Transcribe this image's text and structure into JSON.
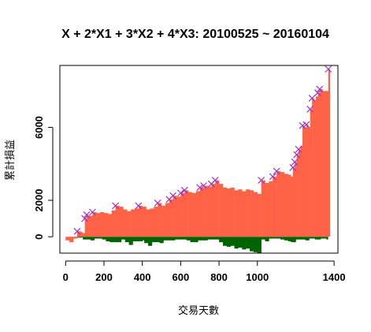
{
  "chart_data": {
    "type": "bar",
    "title": "X + 2*X1 + 3*X2 + 4*X3: 20100525 ~ 20160104",
    "xlabel": "交易天數",
    "ylabel": "累計損益",
    "xlim": [
      -30,
      1420
    ],
    "ylim": [
      -900,
      9400
    ],
    "xticks": [
      0,
      200,
      400,
      600,
      800,
      1000,
      1400
    ],
    "yticks": [
      0,
      2000,
      6000
    ],
    "colors": {
      "profit": "#ff6347",
      "drawdown": "#006400",
      "marker": "#9932cc"
    },
    "cumulative_pnl": [
      [
        0,
        -200
      ],
      [
        20,
        -300
      ],
      [
        40,
        -100
      ],
      [
        60,
        300
      ],
      [
        80,
        250
      ],
      [
        90,
        200
      ],
      [
        100,
        1000
      ],
      [
        110,
        1200
      ],
      [
        120,
        1150
      ],
      [
        140,
        1350
      ],
      [
        160,
        1300
      ],
      [
        180,
        1350
      ],
      [
        200,
        1300
      ],
      [
        220,
        1250
      ],
      [
        240,
        1450
      ],
      [
        260,
        1700
      ],
      [
        280,
        1650
      ],
      [
        300,
        1500
      ],
      [
        320,
        1400
      ],
      [
        340,
        1500
      ],
      [
        360,
        1550
      ],
      [
        380,
        1700
      ],
      [
        400,
        1650
      ],
      [
        420,
        1500
      ],
      [
        440,
        1550
      ],
      [
        460,
        1650
      ],
      [
        480,
        1850
      ],
      [
        500,
        1700
      ],
      [
        520,
        1850
      ],
      [
        540,
        2050
      ],
      [
        560,
        2250
      ],
      [
        580,
        2200
      ],
      [
        600,
        2400
      ],
      [
        620,
        2550
      ],
      [
        640,
        2450
      ],
      [
        660,
        2400
      ],
      [
        680,
        2500
      ],
      [
        700,
        2700
      ],
      [
        720,
        2800
      ],
      [
        740,
        2750
      ],
      [
        760,
        2900
      ],
      [
        780,
        3100
      ],
      [
        800,
        2900
      ],
      [
        820,
        2700
      ],
      [
        840,
        2650
      ],
      [
        860,
        2700
      ],
      [
        880,
        2550
      ],
      [
        900,
        2600
      ],
      [
        920,
        2500
      ],
      [
        940,
        2600
      ],
      [
        960,
        2550
      ],
      [
        980,
        2450
      ],
      [
        1000,
        2350
      ],
      [
        1020,
        3100
      ],
      [
        1040,
        2950
      ],
      [
        1060,
        3050
      ],
      [
        1080,
        3300
      ],
      [
        1100,
        3600
      ],
      [
        1120,
        3550
      ],
      [
        1140,
        3450
      ],
      [
        1160,
        3400
      ],
      [
        1175,
        3300
      ],
      [
        1185,
        3800
      ],
      [
        1195,
        4100
      ],
      [
        1205,
        4500
      ],
      [
        1215,
        4800
      ],
      [
        1225,
        5000
      ],
      [
        1235,
        6100
      ],
      [
        1245,
        6000
      ],
      [
        1255,
        6150
      ],
      [
        1265,
        6000
      ],
      [
        1275,
        7000
      ],
      [
        1285,
        7600
      ],
      [
        1295,
        7500
      ],
      [
        1305,
        7700
      ],
      [
        1315,
        7900
      ],
      [
        1325,
        8100
      ],
      [
        1340,
        8000
      ],
      [
        1355,
        8000
      ],
      [
        1370,
        9200
      ]
    ],
    "drawdown": [
      [
        60,
        -50
      ],
      [
        90,
        -150
      ],
      [
        130,
        -200
      ],
      [
        150,
        -100
      ],
      [
        190,
        -150
      ],
      [
        210,
        -250
      ],
      [
        230,
        -300
      ],
      [
        290,
        -150
      ],
      [
        310,
        -300
      ],
      [
        330,
        -450
      ],
      [
        350,
        -250
      ],
      [
        400,
        -200
      ],
      [
        410,
        -350
      ],
      [
        430,
        -500
      ],
      [
        450,
        -300
      ],
      [
        490,
        -350
      ],
      [
        510,
        -200
      ],
      [
        570,
        -150
      ],
      [
        630,
        -200
      ],
      [
        650,
        -300
      ],
      [
        690,
        -200
      ],
      [
        740,
        -150
      ],
      [
        800,
        -300
      ],
      [
        820,
        -500
      ],
      [
        840,
        -550
      ],
      [
        860,
        -500
      ],
      [
        880,
        -650
      ],
      [
        900,
        -600
      ],
      [
        920,
        -700
      ],
      [
        940,
        -650
      ],
      [
        960,
        -800
      ],
      [
        980,
        -850
      ],
      [
        1000,
        -900
      ],
      [
        1020,
        -150
      ],
      [
        1040,
        -250
      ],
      [
        1060,
        -100
      ],
      [
        1100,
        -100
      ],
      [
        1120,
        -150
      ],
      [
        1140,
        -200
      ],
      [
        1160,
        -250
      ],
      [
        1175,
        -300
      ],
      [
        1200,
        -150
      ],
      [
        1250,
        -200
      ],
      [
        1270,
        -100
      ],
      [
        1300,
        -150
      ],
      [
        1330,
        -100
      ],
      [
        1360,
        -150
      ]
    ],
    "new_high_markers": [
      [
        60,
        300
      ],
      [
        100,
        1000
      ],
      [
        110,
        1200
      ],
      [
        140,
        1350
      ],
      [
        260,
        1700
      ],
      [
        380,
        1700
      ],
      [
        480,
        1850
      ],
      [
        540,
        2050
      ],
      [
        560,
        2250
      ],
      [
        600,
        2400
      ],
      [
        620,
        2550
      ],
      [
        700,
        2700
      ],
      [
        720,
        2800
      ],
      [
        760,
        2900
      ],
      [
        780,
        3100
      ],
      [
        1020,
        3100
      ],
      [
        1080,
        3300
      ],
      [
        1100,
        3600
      ],
      [
        1185,
        3800
      ],
      [
        1195,
        4100
      ],
      [
        1205,
        4500
      ],
      [
        1215,
        4800
      ],
      [
        1235,
        6100
      ],
      [
        1255,
        6150
      ],
      [
        1275,
        7000
      ],
      [
        1285,
        7600
      ],
      [
        1315,
        7900
      ],
      [
        1325,
        8100
      ],
      [
        1370,
        9200
      ]
    ]
  }
}
